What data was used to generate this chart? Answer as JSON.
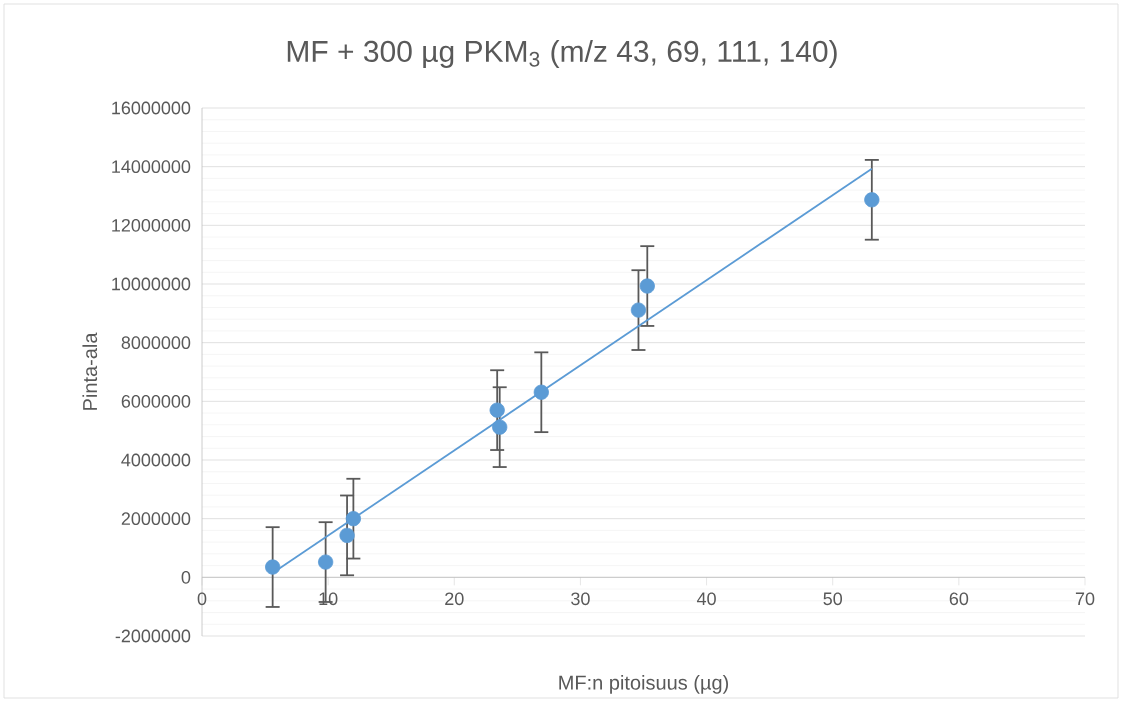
{
  "chart_data": {
    "type": "scatter",
    "title": "MF + 300 µg PKM$_{3}$ (m/z 43, 69, 111, 140)",
    "xlabel": "MF:n pitoisuus (µg)",
    "ylabel": "Pinta-ala",
    "series": [
      {
        "color": "#5b9bd5",
        "marker": "circle",
        "x": [
          5.6,
          9.8,
          11.5,
          12.0,
          23.4,
          23.6,
          26.9,
          34.6,
          35.3,
          53.1
        ],
        "values": [
          350000,
          520000,
          1430000,
          2000000,
          5700000,
          5120000,
          6310000,
          9110000,
          9930000,
          12870000
        ],
        "errors": [
          1360000,
          1360000,
          1360000,
          1360000,
          1360000,
          1360000,
          1360000,
          1360000,
          1360000,
          1360000
        ]
      },
      {
        "type": "line",
        "marker": "none",
        "color": "#5b9bd5",
        "x": [
          5.6,
          53.1
        ],
        "values": [
          150000,
          13930000
        ]
      }
    ],
    "xlim": [
      0,
      70
    ],
    "xticks": [
      0,
      10,
      20,
      30,
      40,
      50,
      60,
      70
    ],
    "ylim": [
      -2000000,
      16000000
    ],
    "yticks": [
      -2000000,
      0,
      2000000,
      4000000,
      6000000,
      8000000,
      10000000,
      12000000,
      14000000,
      16000000
    ],
    "grid": "y"
  }
}
